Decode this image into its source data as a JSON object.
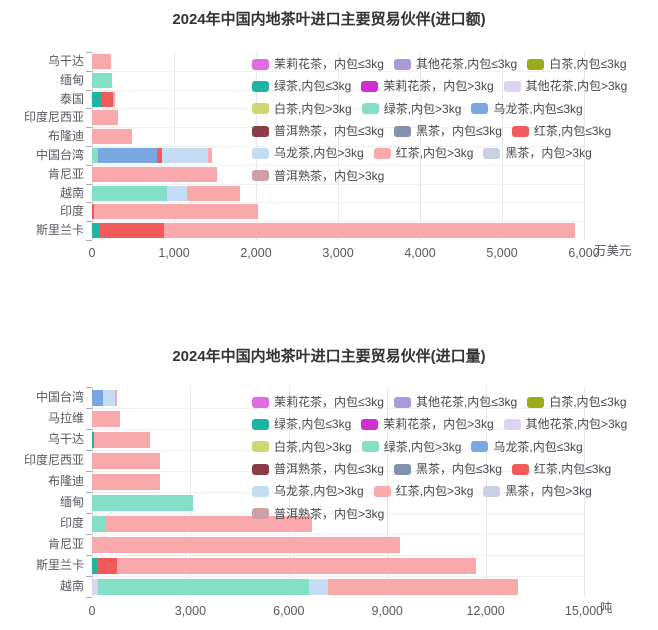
{
  "page": {
    "background": "#ffffff"
  },
  "palette": {
    "jasmine_le3": "#e16be1",
    "other_flower_le3": "#ab99da",
    "white_le3": "#9aab1c",
    "green_le3": "#1fb3a4",
    "jasmine_gt3": "#d02ed0",
    "other_flower_gt3": "#ded3f0",
    "white_gt3": "#cdd873",
    "green_gt3": "#83e0c6",
    "oolong_le3": "#78a7e2",
    "puer_le3": "#8b3c46",
    "heicha_le3": "#8191af",
    "hongcha_le3": "#f25959",
    "oolong_gt3": "#c4ddf4",
    "hongcha_gt3": "#f9a9ac",
    "heicha_gt3": "#c9d0e1",
    "puer_gt3": "#d19ea8"
  },
  "legend": {
    "rows": [
      [
        {
          "key": "jasmine_le3",
          "label": "茉莉花茶，内包≤3kg"
        },
        {
          "key": "other_flower_le3",
          "label": "其他花茶,内包≤3kg"
        },
        {
          "key": "white_le3",
          "label": "白茶,内包≤3kg"
        }
      ],
      [
        {
          "key": "green_le3",
          "label": "绿茶,内包≤3kg"
        },
        {
          "key": "jasmine_gt3",
          "label": "茉莉花茶，内包>3kg"
        },
        {
          "key": "other_flower_gt3",
          "label": "其他花茶,内包>3kg"
        }
      ],
      [
        {
          "key": "white_gt3",
          "label": "白茶,内包>3kg"
        },
        {
          "key": "green_gt3",
          "label": "绿茶,内包>3kg"
        },
        {
          "key": "oolong_le3",
          "label": "乌龙茶,内包≤3kg"
        }
      ],
      [
        {
          "key": "puer_le3",
          "label": "普洱熟茶，内包≤3kg"
        },
        {
          "key": "heicha_le3",
          "label": "黑茶，内包≤3kg"
        },
        {
          "key": "hongcha_le3",
          "label": "红茶,内包≤3kg"
        }
      ],
      [
        {
          "key": "oolong_gt3",
          "label": "乌龙茶,内包>3kg"
        },
        {
          "key": "hongcha_gt3",
          "label": "红茶,内包>3kg"
        },
        {
          "key": "heicha_gt3",
          "label": "黑茶，内包>3kg"
        }
      ],
      [
        {
          "key": "puer_gt3",
          "label": "普洱熟茶，内包>3kg"
        }
      ]
    ]
  },
  "chart_data": [
    {
      "type": "bar",
      "orientation": "horizontal",
      "stacked": true,
      "title": "2024年中国内地茶叶进口主要贸易伙伴(进口额)",
      "unit": "万美元",
      "xlim": [
        0,
        6000
      ],
      "xticks": [
        {
          "v": 0,
          "label": "0"
        },
        {
          "v": 1000,
          "label": "1,000"
        },
        {
          "v": 2000,
          "label": "2,000"
        },
        {
          "v": 3000,
          "label": "3,000"
        },
        {
          "v": 4000,
          "label": "4,000"
        },
        {
          "v": 5000,
          "label": "5,000"
        },
        {
          "v": 6000,
          "label": "6,000"
        }
      ],
      "categories": [
        "乌干达",
        "缅甸",
        "泰国",
        "印度尼西亚",
        "布隆迪",
        "中国台湾",
        "肯尼亚",
        "越南",
        "印度",
        "斯里兰卡"
      ],
      "bars": [
        {
          "category": "乌干达",
          "segments": [
            {
              "key": "hongcha_gt3",
              "value": 230
            }
          ]
        },
        {
          "category": "缅甸",
          "segments": [
            {
              "key": "green_gt3",
              "value": 245
            }
          ]
        },
        {
          "category": "泰国",
          "segments": [
            {
              "key": "green_le3",
              "value": 110
            },
            {
              "key": "hongcha_le3",
              "value": 150
            },
            {
              "key": "hongcha_gt3",
              "value": 25
            }
          ]
        },
        {
          "category": "印度尼西亚",
          "segments": [
            {
              "key": "hongcha_gt3",
              "value": 320
            }
          ]
        },
        {
          "category": "布隆迪",
          "segments": [
            {
              "key": "hongcha_gt3",
              "value": 490
            }
          ]
        },
        {
          "category": "中国台湾",
          "segments": [
            {
              "key": "green_gt3",
              "value": 70
            },
            {
              "key": "oolong_le3",
              "value": 720
            },
            {
              "key": "hongcha_le3",
              "value": 60
            },
            {
              "key": "oolong_gt3",
              "value": 560
            },
            {
              "key": "hongcha_gt3",
              "value": 50
            }
          ]
        },
        {
          "category": "肯尼亚",
          "segments": [
            {
              "key": "hongcha_gt3",
              "value": 1530
            }
          ]
        },
        {
          "category": "越南",
          "segments": [
            {
              "key": "green_gt3",
              "value": 910
            },
            {
              "key": "oolong_gt3",
              "value": 245
            },
            {
              "key": "hongcha_gt3",
              "value": 655
            }
          ]
        },
        {
          "category": "印度",
          "segments": [
            {
              "key": "hongcha_le3",
              "value": 30
            },
            {
              "key": "hongcha_gt3",
              "value": 2000
            }
          ]
        },
        {
          "category": "斯里兰卡",
          "segments": [
            {
              "key": "green_le3",
              "value": 85
            },
            {
              "key": "hongcha_le3",
              "value": 790
            },
            {
              "key": "hongcha_gt3",
              "value": 5015
            }
          ]
        }
      ]
    },
    {
      "type": "bar",
      "orientation": "horizontal",
      "stacked": true,
      "title": "2024年中国内地茶叶进口主要贸易伙伴(进口量)",
      "unit": "吨",
      "xlim": [
        0,
        15000
      ],
      "xticks": [
        {
          "v": 0,
          "label": "0"
        },
        {
          "v": 3000,
          "label": "3,000"
        },
        {
          "v": 6000,
          "label": "6,000"
        },
        {
          "v": 9000,
          "label": "9,000"
        },
        {
          "v": 12000,
          "label": "12,000"
        },
        {
          "v": 15000,
          "label": "15,000"
        }
      ],
      "categories": [
        "中国台湾",
        "马拉维",
        "乌干达",
        "印度尼西亚",
        "布隆迪",
        "缅甸",
        "印度",
        "肯尼亚",
        "斯里兰卡",
        "越南"
      ],
      "bars": [
        {
          "category": "中国台湾",
          "segments": [
            {
              "key": "oolong_le3",
              "value": 330
            },
            {
              "key": "oolong_gt3",
              "value": 365
            },
            {
              "key": "hongcha_gt3",
              "value": 60
            }
          ]
        },
        {
          "category": "马拉维",
          "segments": [
            {
              "key": "hongcha_gt3",
              "value": 850
            }
          ]
        },
        {
          "category": "乌干达",
          "segments": [
            {
              "key": "green_le3",
              "value": 70
            },
            {
              "key": "hongcha_gt3",
              "value": 1700
            }
          ]
        },
        {
          "category": "印度尼西亚",
          "segments": [
            {
              "key": "hongcha_gt3",
              "value": 2060
            }
          ]
        },
        {
          "category": "布隆迪",
          "segments": [
            {
              "key": "hongcha_gt3",
              "value": 2070
            }
          ]
        },
        {
          "category": "缅甸",
          "segments": [
            {
              "key": "green_gt3",
              "value": 3070
            }
          ]
        },
        {
          "category": "印度",
          "segments": [
            {
              "key": "green_gt3",
              "value": 400
            },
            {
              "key": "hongcha_gt3",
              "value": 6320
            }
          ]
        },
        {
          "category": "肯尼亚",
          "segments": [
            {
              "key": "hongcha_gt3",
              "value": 9390
            }
          ]
        },
        {
          "category": "斯里兰卡",
          "segments": [
            {
              "key": "green_le3",
              "value": 150
            },
            {
              "key": "hongcha_le3",
              "value": 610
            },
            {
              "key": "hongcha_gt3",
              "value": 10940
            }
          ]
        },
        {
          "category": "越南",
          "segments": [
            {
              "key": "other_flower_gt3",
              "value": 170
            },
            {
              "key": "green_gt3",
              "value": 6440
            },
            {
              "key": "oolong_gt3",
              "value": 580
            },
            {
              "key": "hongcha_gt3",
              "value": 5800
            }
          ]
        }
      ]
    }
  ]
}
